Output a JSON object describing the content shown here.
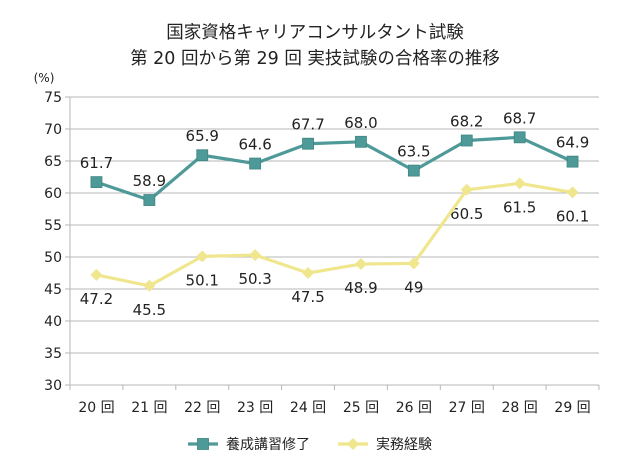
{
  "chart_data": {
    "type": "line",
    "title_lines": [
      "国家資格キャリアコンサルタント試験",
      "第 20 回から第 29 回 実技試験の合格率の推移"
    ],
    "ylabel": "(%)",
    "ylim": [
      30,
      75
    ],
    "yticks": [
      30,
      35,
      40,
      45,
      50,
      55,
      60,
      65,
      70,
      75
    ],
    "grid": true,
    "legend_position": "bottom",
    "categories": [
      "20 回",
      "21 回",
      "22 回",
      "23 回",
      "24 回",
      "25 回",
      "26 回",
      "27 回",
      "28 回",
      "29 回"
    ],
    "series": [
      {
        "name": "養成講習修了",
        "values": [
          61.7,
          58.9,
          65.9,
          64.6,
          67.7,
          68.0,
          63.5,
          68.2,
          68.7,
          64.9
        ],
        "labels": [
          "61.7",
          "58.9",
          "65.9",
          "64.6",
          "67.7",
          "68.0",
          "63.5",
          "68.2",
          "68.7",
          "64.9"
        ],
        "color": "#4e9a98",
        "marker": "square",
        "label_side": "above"
      },
      {
        "name": "実務経験",
        "values": [
          47.2,
          45.5,
          50.1,
          50.3,
          47.5,
          48.9,
          49.0,
          60.5,
          61.5,
          60.1
        ],
        "labels": [
          "47.2",
          "45.5",
          "50.1",
          "50.3",
          "47.5",
          "48.9",
          "49",
          "60.5",
          "61.5",
          "60.1"
        ],
        "color": "#efe68e",
        "marker": "diamond",
        "label_side": "below"
      }
    ]
  }
}
